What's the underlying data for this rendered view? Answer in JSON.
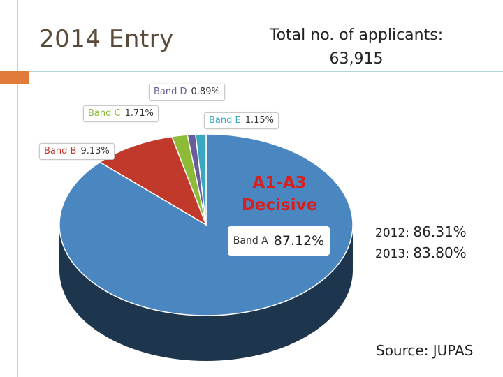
{
  "header": {
    "entry_title": "2014 Entry",
    "applicants_label": "Total no. of applicants:",
    "applicants_value": "63,915"
  },
  "chart_data": {
    "type": "pie",
    "title": "",
    "slices": [
      {
        "label": "Band A",
        "value_text": "87.12%",
        "value": 87.12,
        "color": "#4a86c0"
      },
      {
        "label": "Band B",
        "value_text": "9.13%",
        "value": 9.13,
        "color": "#c0392b"
      },
      {
        "label": "Band C",
        "value_text": "1.71%",
        "value": 1.71,
        "color": "#8dbb38"
      },
      {
        "label": "Band D",
        "value_text": "0.89%",
        "value": 0.89,
        "color": "#6a5b9a"
      },
      {
        "label": "Band E",
        "value_text": "1.15%",
        "value": 1.15,
        "color": "#3aa6c0"
      }
    ],
    "annotation": {
      "line1": "A1-A3",
      "line2": "Decisive",
      "color": "#d62020"
    }
  },
  "year_stats": [
    {
      "year_label": "2012:",
      "value": "86.31%"
    },
    {
      "year_label": "2013:",
      "value": "83.80%"
    }
  ],
  "source": "Source: JUPAS"
}
